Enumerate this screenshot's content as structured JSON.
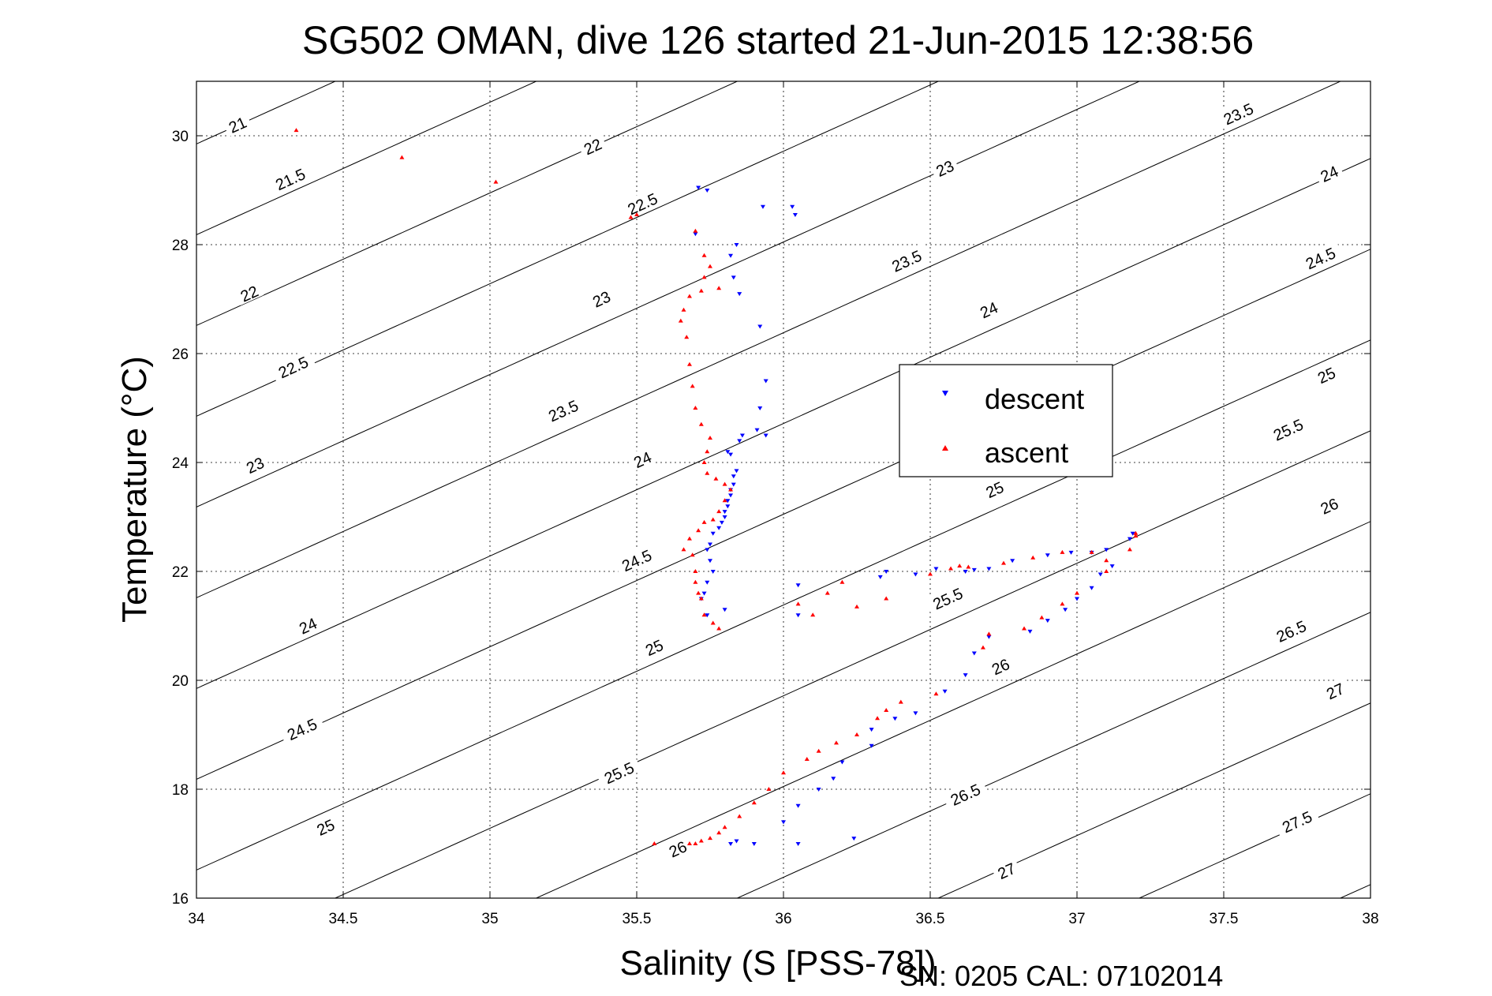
{
  "chart_data": {
    "type": "scatter",
    "title": "SG502 OMAN, dive 126 started 21-Jun-2015 12:38:56",
    "xlabel": "Salinity (S [PSS-78])",
    "ylabel": "Temperature (°C)",
    "xlim": [
      34,
      38
    ],
    "ylim": [
      16,
      31
    ],
    "x_ticks": [
      "34",
      "34.5",
      "35",
      "35.5",
      "36",
      "36.5",
      "37",
      "37.5",
      "38"
    ],
    "y_ticks": [
      "16",
      "18",
      "20",
      "22",
      "24",
      "26",
      "28",
      "30"
    ],
    "grid": true,
    "legend_position": "center-right",
    "footer": "SN: 0205  CAL: 07102014",
    "contour_labels": [
      {
        "text": "21",
        "s": 34.14,
        "t": 30.2
      },
      {
        "text": "21.5",
        "s": 34.32,
        "t": 29.2
      },
      {
        "text": "22",
        "s": 35.35,
        "t": 29.8
      },
      {
        "text": "22",
        "s": 34.18,
        "t": 27.1
      },
      {
        "text": "22.5",
        "s": 35.52,
        "t": 28.75
      },
      {
        "text": "22.5",
        "s": 34.33,
        "t": 25.75
      },
      {
        "text": "23",
        "s": 35.38,
        "t": 27.0
      },
      {
        "text": "23",
        "s": 36.55,
        "t": 29.4
      },
      {
        "text": "23",
        "s": 34.2,
        "t": 23.95
      },
      {
        "text": "23.5",
        "s": 37.55,
        "t": 30.4
      },
      {
        "text": "23.5",
        "s": 36.42,
        "t": 27.7
      },
      {
        "text": "23.5",
        "s": 35.25,
        "t": 24.95
      },
      {
        "text": "24",
        "s": 37.86,
        "t": 29.3
      },
      {
        "text": "24",
        "s": 36.7,
        "t": 26.8
      },
      {
        "text": "24",
        "s": 35.52,
        "t": 24.05
      },
      {
        "text": "24",
        "s": 34.38,
        "t": 21.0
      },
      {
        "text": "24.5",
        "s": 37.83,
        "t": 27.75
      },
      {
        "text": "24.5",
        "s": 35.5,
        "t": 22.2
      },
      {
        "text": "24.5",
        "s": 34.36,
        "t": 19.1
      },
      {
        "text": "25",
        "s": 37.85,
        "t": 25.6
      },
      {
        "text": "25",
        "s": 36.72,
        "t": 23.5
      },
      {
        "text": "25",
        "s": 35.56,
        "t": 20.6
      },
      {
        "text": "25",
        "s": 34.44,
        "t": 17.3
      },
      {
        "text": "25.5",
        "s": 37.72,
        "t": 24.6
      },
      {
        "text": "25.5",
        "s": 36.56,
        "t": 21.5
      },
      {
        "text": "25.5",
        "s": 35.44,
        "t": 18.3
      },
      {
        "text": "26",
        "s": 37.86,
        "t": 23.2
      },
      {
        "text": "26",
        "s": 36.74,
        "t": 20.25
      },
      {
        "text": "26",
        "s": 35.64,
        "t": 16.9
      },
      {
        "text": "26.5",
        "s": 37.73,
        "t": 20.9
      },
      {
        "text": "26.5",
        "s": 36.62,
        "t": 17.9
      },
      {
        "text": "27",
        "s": 37.88,
        "t": 19.8
      },
      {
        "text": "27",
        "s": 36.76,
        "t": 16.5
      },
      {
        "text": "27.5",
        "s": 37.75,
        "t": 17.4
      }
    ],
    "series": [
      {
        "name": "descent",
        "color": "#0000ff",
        "marker": "triangle-down",
        "points": [
          [
            35.71,
            29.05
          ],
          [
            35.74,
            29.0
          ],
          [
            35.93,
            28.7
          ],
          [
            36.03,
            28.7
          ],
          [
            36.04,
            28.55
          ],
          [
            35.7,
            28.2
          ],
          [
            35.84,
            28.0
          ],
          [
            35.82,
            27.8
          ],
          [
            35.83,
            27.4
          ],
          [
            35.85,
            27.1
          ],
          [
            35.92,
            26.5
          ],
          [
            35.94,
            25.5
          ],
          [
            35.92,
            25.0
          ],
          [
            35.91,
            24.6
          ],
          [
            35.94,
            24.5
          ],
          [
            35.85,
            24.4
          ],
          [
            35.86,
            24.5
          ],
          [
            35.81,
            24.2
          ],
          [
            35.82,
            24.15
          ],
          [
            35.84,
            23.85
          ],
          [
            35.83,
            23.75
          ],
          [
            35.83,
            23.6
          ],
          [
            35.82,
            23.5
          ],
          [
            35.82,
            23.4
          ],
          [
            35.81,
            23.3
          ],
          [
            35.81,
            23.2
          ],
          [
            35.8,
            23.1
          ],
          [
            35.8,
            23.0
          ],
          [
            35.79,
            22.9
          ],
          [
            35.78,
            22.8
          ],
          [
            35.76,
            22.7
          ],
          [
            35.75,
            22.5
          ],
          [
            35.74,
            22.4
          ],
          [
            35.75,
            22.2
          ],
          [
            35.76,
            22.0
          ],
          [
            35.74,
            21.8
          ],
          [
            35.73,
            21.6
          ],
          [
            35.72,
            21.5
          ],
          [
            35.74,
            21.2
          ],
          [
            35.8,
            21.3
          ],
          [
            36.05,
            21.75
          ],
          [
            36.05,
            21.2
          ],
          [
            36.35,
            22.0
          ],
          [
            36.33,
            21.9
          ],
          [
            36.45,
            21.95
          ],
          [
            36.52,
            22.05
          ],
          [
            36.62,
            22.0
          ],
          [
            36.65,
            22.03
          ],
          [
            36.7,
            22.05
          ],
          [
            36.78,
            22.2
          ],
          [
            36.9,
            22.3
          ],
          [
            36.98,
            22.35
          ],
          [
            37.05,
            22.35
          ],
          [
            37.1,
            22.4
          ],
          [
            37.18,
            22.6
          ],
          [
            37.19,
            22.7
          ],
          [
            37.12,
            22.1
          ],
          [
            37.08,
            21.95
          ],
          [
            37.05,
            21.7
          ],
          [
            37.0,
            21.5
          ],
          [
            36.96,
            21.3
          ],
          [
            36.9,
            21.1
          ],
          [
            36.84,
            20.9
          ],
          [
            36.7,
            20.8
          ],
          [
            36.65,
            20.5
          ],
          [
            36.62,
            20.1
          ],
          [
            36.55,
            19.8
          ],
          [
            36.45,
            19.4
          ],
          [
            36.38,
            19.3
          ],
          [
            36.3,
            19.1
          ],
          [
            36.3,
            18.8
          ],
          [
            36.2,
            18.5
          ],
          [
            36.17,
            18.2
          ],
          [
            36.12,
            18.0
          ],
          [
            36.05,
            17.7
          ],
          [
            36.0,
            17.4
          ],
          [
            36.05,
            17.0
          ],
          [
            36.24,
            17.1
          ],
          [
            35.9,
            17.0
          ],
          [
            35.84,
            17.05
          ],
          [
            35.82,
            17.0
          ]
        ]
      },
      {
        "name": "ascent",
        "color": "#ff0000",
        "marker": "triangle-up",
        "points": [
          [
            34.34,
            30.1
          ],
          [
            34.7,
            29.6
          ],
          [
            35.02,
            29.15
          ],
          [
            35.48,
            28.5
          ],
          [
            35.5,
            28.55
          ],
          [
            35.7,
            28.25
          ],
          [
            35.73,
            27.8
          ],
          [
            35.75,
            27.6
          ],
          [
            35.73,
            27.4
          ],
          [
            35.72,
            27.15
          ],
          [
            35.78,
            27.2
          ],
          [
            35.68,
            27.05
          ],
          [
            35.66,
            26.8
          ],
          [
            35.65,
            26.6
          ],
          [
            35.67,
            26.3
          ],
          [
            35.68,
            25.8
          ],
          [
            35.69,
            25.4
          ],
          [
            35.7,
            25.0
          ],
          [
            35.72,
            24.7
          ],
          [
            35.75,
            24.45
          ],
          [
            35.74,
            24.2
          ],
          [
            35.73,
            24.0
          ],
          [
            35.74,
            23.8
          ],
          [
            35.77,
            23.7
          ],
          [
            35.8,
            23.6
          ],
          [
            35.82,
            23.5
          ],
          [
            35.8,
            23.3
          ],
          [
            35.78,
            23.1
          ],
          [
            35.76,
            22.95
          ],
          [
            35.73,
            22.9
          ],
          [
            35.71,
            22.75
          ],
          [
            35.68,
            22.6
          ],
          [
            35.66,
            22.4
          ],
          [
            35.69,
            22.3
          ],
          [
            35.7,
            22.0
          ],
          [
            35.7,
            21.8
          ],
          [
            35.71,
            21.6
          ],
          [
            35.72,
            21.5
          ],
          [
            35.73,
            21.2
          ],
          [
            35.76,
            21.05
          ],
          [
            35.78,
            20.95
          ],
          [
            36.05,
            21.4
          ],
          [
            36.1,
            21.2
          ],
          [
            36.15,
            21.6
          ],
          [
            36.2,
            21.8
          ],
          [
            36.25,
            21.35
          ],
          [
            36.35,
            21.5
          ],
          [
            36.5,
            21.95
          ],
          [
            36.57,
            22.05
          ],
          [
            36.6,
            22.1
          ],
          [
            36.63,
            22.08
          ],
          [
            36.75,
            22.15
          ],
          [
            36.85,
            22.25
          ],
          [
            36.95,
            22.35
          ],
          [
            37.05,
            22.35
          ],
          [
            37.1,
            22.2
          ],
          [
            37.18,
            22.4
          ],
          [
            37.2,
            22.65
          ],
          [
            37.2,
            22.7
          ],
          [
            37.1,
            22.0
          ],
          [
            37.0,
            21.6
          ],
          [
            36.95,
            21.4
          ],
          [
            36.88,
            21.15
          ],
          [
            36.82,
            20.95
          ],
          [
            36.7,
            20.85
          ],
          [
            36.68,
            20.6
          ],
          [
            36.52,
            19.75
          ],
          [
            36.4,
            19.6
          ],
          [
            36.35,
            19.45
          ],
          [
            36.32,
            19.3
          ],
          [
            36.25,
            19.0
          ],
          [
            36.18,
            18.85
          ],
          [
            36.12,
            18.7
          ],
          [
            36.08,
            18.55
          ],
          [
            36.0,
            18.3
          ],
          [
            35.95,
            18.0
          ],
          [
            35.9,
            17.75
          ],
          [
            35.85,
            17.5
          ],
          [
            35.8,
            17.3
          ],
          [
            35.78,
            17.2
          ],
          [
            35.75,
            17.1
          ],
          [
            35.72,
            17.05
          ],
          [
            35.7,
            17.0
          ],
          [
            35.68,
            17.0
          ],
          [
            35.56,
            17.0
          ]
        ]
      }
    ]
  }
}
